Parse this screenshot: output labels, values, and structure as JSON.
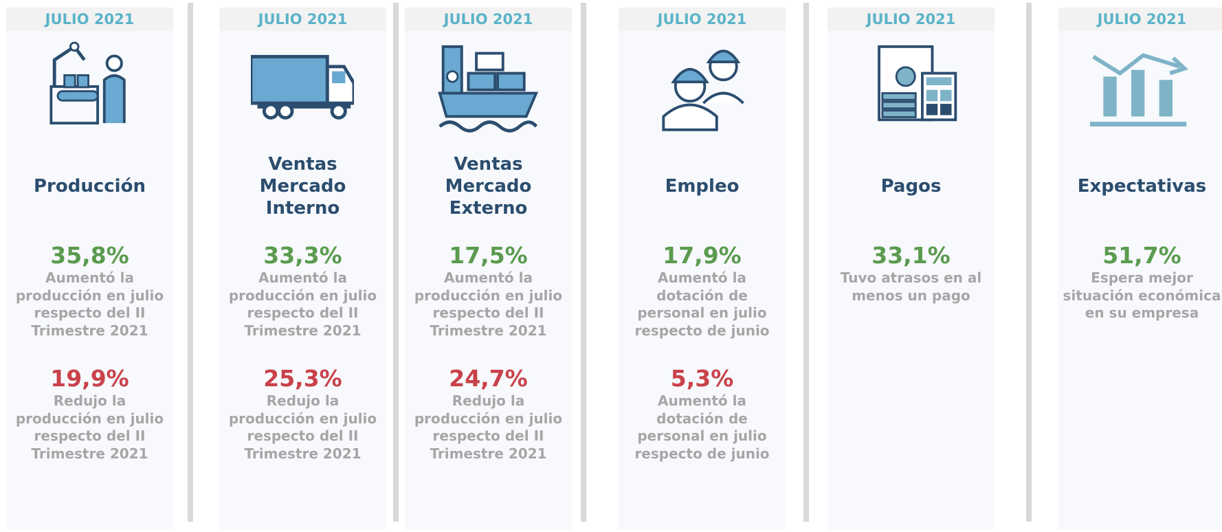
{
  "panels": [
    {
      "header": "JULIO 2021",
      "title": [
        "Producción"
      ],
      "stats": [
        {
          "value": "35,8%",
          "tone": "up",
          "text": [
            "Aumentó la",
            "producción en julio",
            "respecto del II",
            "Trimestre 2021"
          ]
        },
        {
          "value": "19,9%",
          "tone": "down",
          "text": [
            "Redujo la",
            "producción en julio",
            "respecto del II",
            "Trimestre 2021"
          ]
        }
      ]
    },
    {
      "header": "JULIO 2021",
      "title": [
        "Ventas",
        "Mercado",
        "Interno"
      ],
      "stats": [
        {
          "value": "33,3%",
          "tone": "up",
          "text": [
            "Aumentó la",
            "producción en julio",
            "respecto del II",
            "Trimestre 2021"
          ]
        },
        {
          "value": "25,3%",
          "tone": "down",
          "text": [
            "Redujo la",
            "producción en julio",
            "respecto del II",
            "Trimestre 2021"
          ]
        }
      ]
    },
    {
      "header": "JULIO 2021",
      "title": [
        "Ventas",
        "Mercado",
        "Externo"
      ],
      "stats": [
        {
          "value": "17,5%",
          "tone": "up",
          "text": [
            "Aumentó la",
            "producción en julio",
            "respecto del II",
            "Trimestre 2021"
          ]
        },
        {
          "value": "24,7%",
          "tone": "down",
          "text": [
            "Redujo la",
            "producción en julio",
            "respecto del II",
            "Trimestre 2021"
          ]
        }
      ]
    },
    {
      "header": "JULIO 2021",
      "title": [
        "Empleo"
      ],
      "stats": [
        {
          "value": "17,9%",
          "tone": "up",
          "text": [
            "Aumentó la",
            "dotación de",
            "personal en julio",
            "respecto de junio"
          ]
        },
        {
          "value": "5,3%",
          "tone": "down",
          "text": [
            "Aumentó la",
            "dotación de",
            "personal en julio",
            "respecto de junio"
          ]
        }
      ]
    },
    {
      "header": "JULIO 2021",
      "title": [
        "Pagos"
      ],
      "stats": [
        {
          "value": "33,1%",
          "tone": "up",
          "text": [
            "Tuvo atrasos en al",
            "menos un pago"
          ]
        }
      ]
    },
    {
      "header": "JULIO 2021",
      "title": [
        "Expectativas"
      ],
      "stats": [
        {
          "value": "51,7%",
          "tone": "up",
          "text": [
            "Espera mejor",
            "situación económica",
            "en su empresa"
          ]
        }
      ]
    }
  ]
}
